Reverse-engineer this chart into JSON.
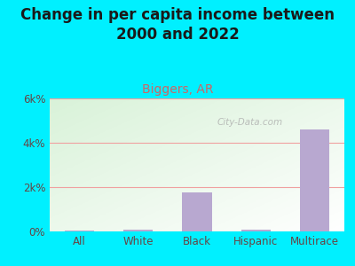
{
  "title": "Change in per capita income between\n2000 and 2022",
  "subtitle": "Biggers, AR",
  "categories": [
    "All",
    "White",
    "Black",
    "Hispanic",
    "Multirace"
  ],
  "values": [
    50,
    100,
    1750,
    80,
    4600
  ],
  "bar_color": "#b8a8d0",
  "background_outer": "#00f0ff",
  "title_fontsize": 12,
  "subtitle_fontsize": 10,
  "subtitle_color": "#cc6666",
  "title_color": "#1a1a1a",
  "tick_color": "#664444",
  "ylim": [
    0,
    6000
  ],
  "yticks": [
    0,
    2000,
    4000,
    6000
  ],
  "ytick_labels": [
    "0%",
    "2k%",
    "4k%",
    "6k%"
  ],
  "grid_color": "#f0a0a0",
  "watermark": "City-Data.com"
}
